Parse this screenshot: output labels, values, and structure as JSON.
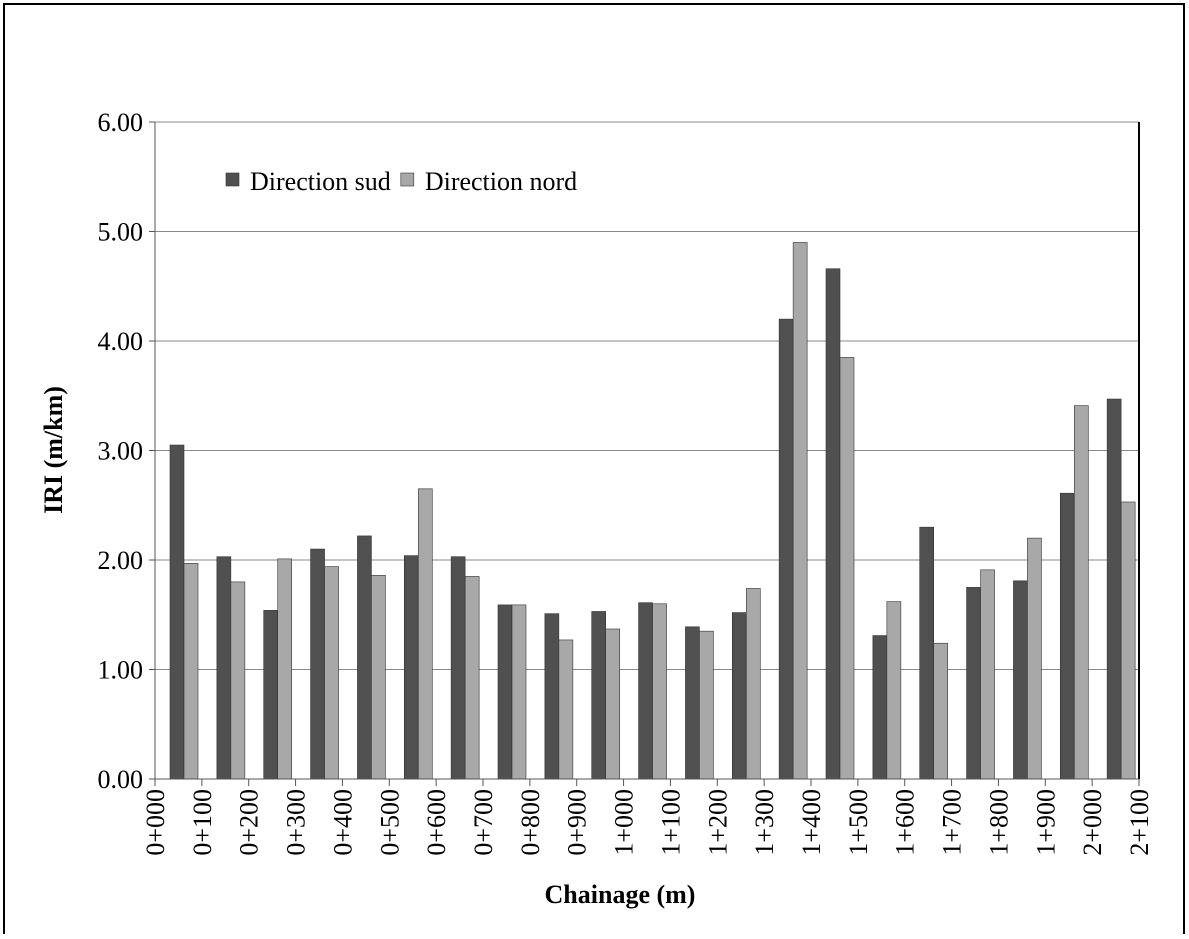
{
  "chart_data": {
    "type": "bar",
    "x_title": "Chainage (m)",
    "y_title": "IRI (m/km)",
    "x_labels": [
      "0+000",
      "0+100",
      "0+200",
      "0+300",
      "0+400",
      "0+500",
      "0+600",
      "0+700",
      "0+800",
      "0+900",
      "1+000",
      "1+100",
      "1+200",
      "1+300",
      "1+400",
      "1+500",
      "1+600",
      "1+700",
      "1+800",
      "1+900",
      "2+000",
      "2+100"
    ],
    "series": [
      {
        "name": "Direction sud",
        "color": "#505050",
        "values": [
          3.05,
          2.03,
          1.54,
          2.1,
          2.22,
          2.04,
          2.03,
          1.59,
          1.51,
          1.53,
          1.61,
          1.39,
          1.52,
          4.2,
          4.66,
          1.31,
          2.3,
          1.75,
          1.81,
          2.61,
          3.47
        ]
      },
      {
        "name": "Direction nord",
        "color": "#a8a8a8",
        "values": [
          1.97,
          1.8,
          2.01,
          1.94,
          1.86,
          2.65,
          1.85,
          1.59,
          1.27,
          1.37,
          1.6,
          1.35,
          1.74,
          4.9,
          3.85,
          1.62,
          1.24,
          1.91,
          2.2,
          3.41,
          2.53
        ]
      }
    ],
    "ylim": [
      0,
      6
    ],
    "yticks": [
      {
        "value": 0,
        "label": "0.00"
      },
      {
        "value": 1,
        "label": "1.00"
      },
      {
        "value": 2,
        "label": "2.00"
      },
      {
        "value": 3,
        "label": "3.00"
      },
      {
        "value": 4,
        "label": "4.00"
      },
      {
        "value": 5,
        "label": "5.00"
      },
      {
        "value": 6,
        "label": "6.00"
      }
    ],
    "grid": true
  }
}
